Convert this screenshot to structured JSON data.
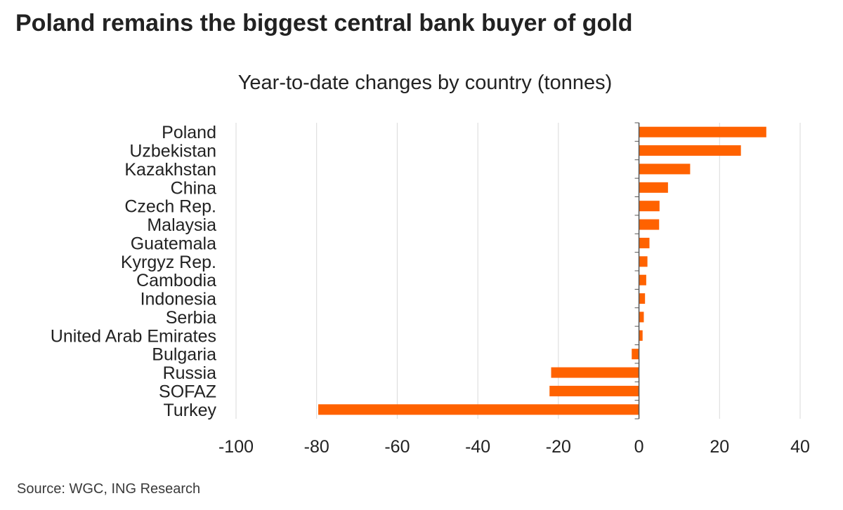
{
  "title": "Poland remains the biggest central bank buyer of gold",
  "source": "Source: WGC, ING Research",
  "chart_data": {
    "type": "bar",
    "orientation": "horizontal",
    "subtitle": "Year-to-date changes by country (tonnes)",
    "categories": [
      "Poland",
      "Uzbekistan",
      "Kazakhstan",
      "China",
      "Czech Rep.",
      "Malaysia",
      "Guatemala",
      "Kyrgyz Rep.",
      "Cambodia",
      "Indonesia",
      "Serbia",
      "United Arab Emirates",
      "Bulgaria",
      "Russia",
      "SOFAZ",
      "Turkey"
    ],
    "values": [
      31.6,
      25.3,
      12.7,
      7.2,
      5.1,
      5.0,
      2.6,
      2.1,
      1.8,
      1.5,
      1.2,
      0.9,
      -1.8,
      -21.8,
      -22.2,
      -79.6
    ],
    "xlim": [
      -100,
      40
    ],
    "xticks": [
      -100,
      -80,
      -60,
      -40,
      -20,
      0,
      20,
      40
    ],
    "grid": "vertical",
    "bar_color": "#ff6200",
    "grid_color": "#d9d9d9",
    "axis_color": "#555555"
  }
}
